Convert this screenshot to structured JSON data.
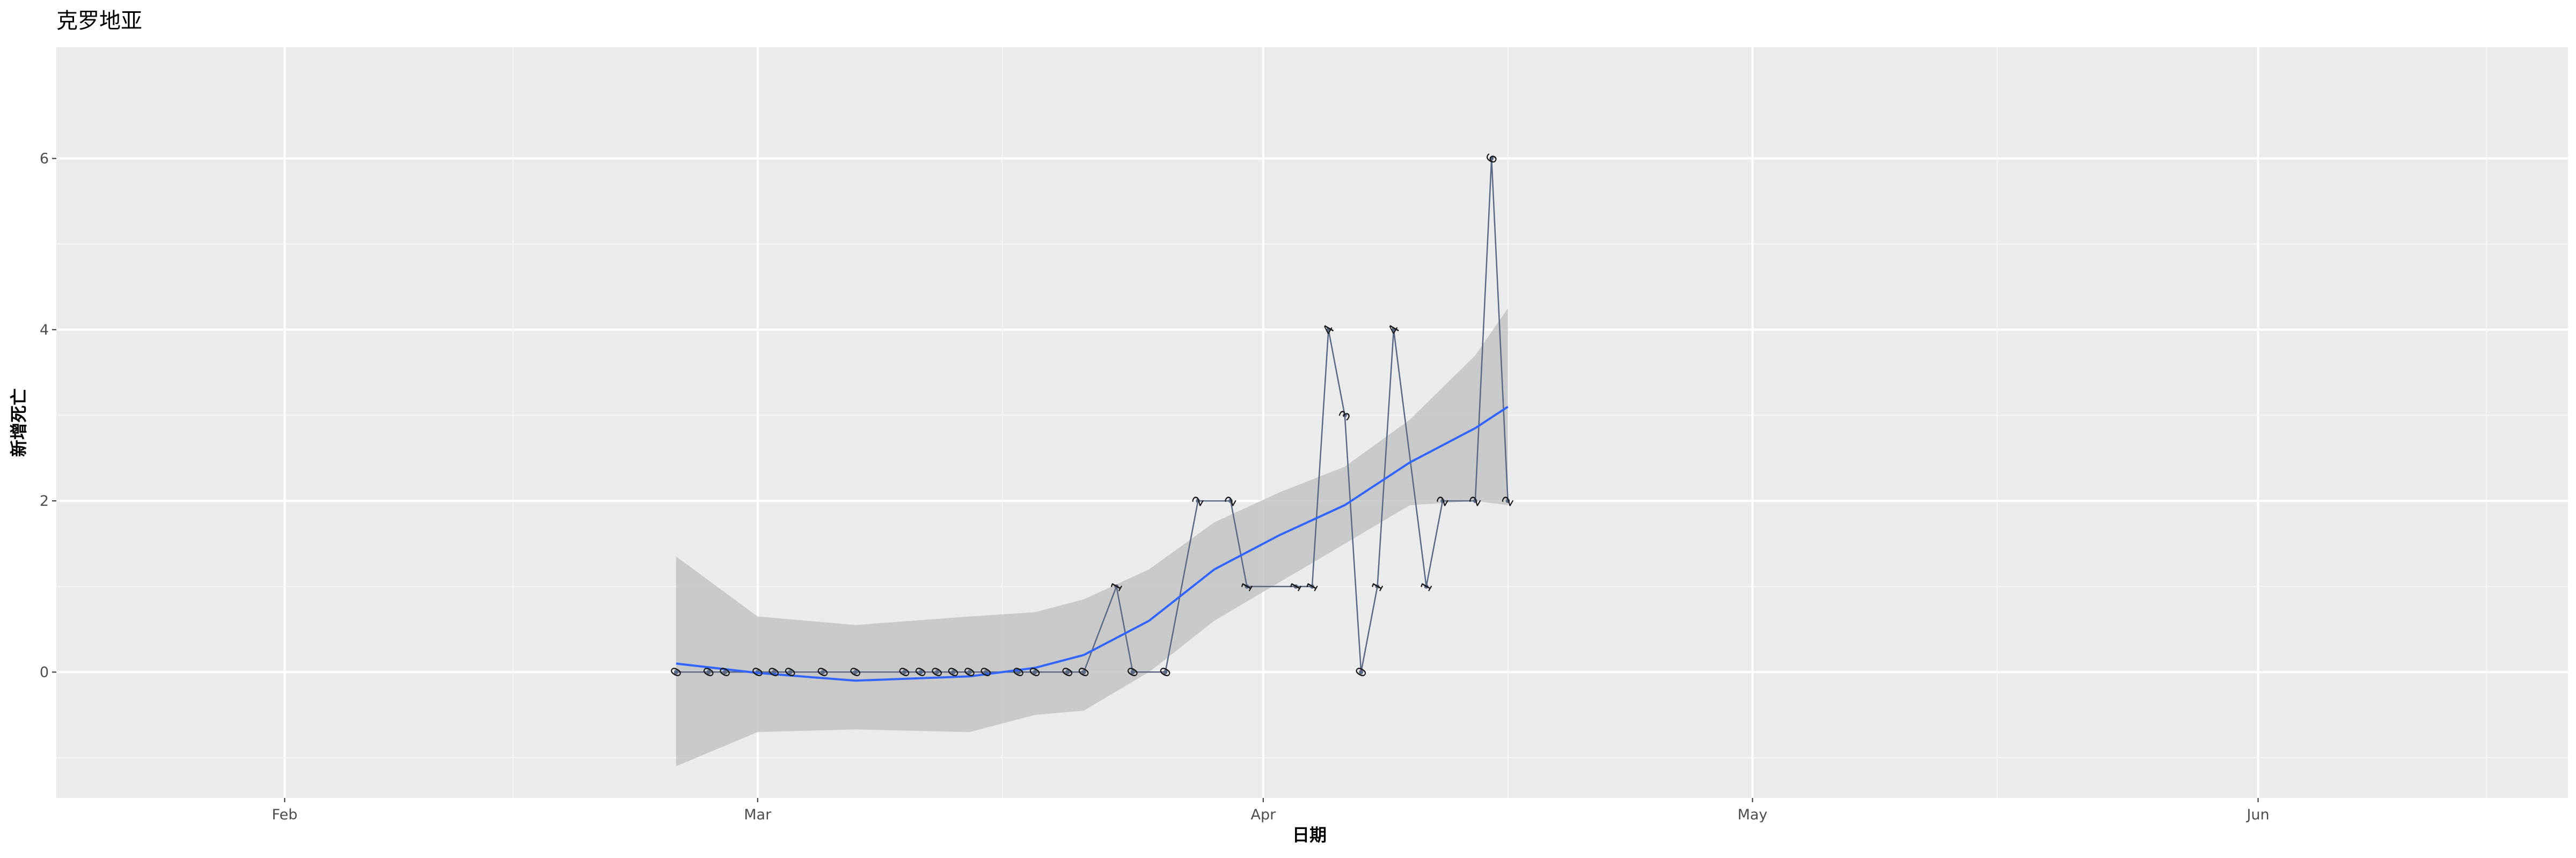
{
  "chart_data": {
    "type": "line",
    "title": "克罗地亚",
    "xlabel": "日期",
    "ylabel": "新增死亡",
    "x_ticks": [
      {
        "label": "Feb",
        "date": "2020-02-01"
      },
      {
        "label": "Mar",
        "date": "2020-03-01"
      },
      {
        "label": "Apr",
        "date": "2020-04-01"
      },
      {
        "label": "May",
        "date": "2020-05-01"
      },
      {
        "label": "Jun",
        "date": "2020-06-01"
      }
    ],
    "y_ticks": [
      0,
      2,
      4,
      6
    ],
    "xlim": [
      "2020-01-18",
      "2020-06-20"
    ],
    "ylim": [
      -1.47,
      7.3
    ],
    "grid": true,
    "series": [
      {
        "color": "#5a6785",
        "points": [
          {
            "x": "2020-02-25",
            "y": 0
          },
          {
            "x": "2020-02-27",
            "y": 0
          },
          {
            "x": "2020-02-28",
            "y": 0
          },
          {
            "x": "2020-03-01",
            "y": 0
          },
          {
            "x": "2020-03-02",
            "y": 0
          },
          {
            "x": "2020-03-03",
            "y": 0
          },
          {
            "x": "2020-03-05",
            "y": 0
          },
          {
            "x": "2020-03-07",
            "y": 0
          },
          {
            "x": "2020-03-10",
            "y": 0
          },
          {
            "x": "2020-03-11",
            "y": 0
          },
          {
            "x": "2020-03-12",
            "y": 0
          },
          {
            "x": "2020-03-13",
            "y": 0
          },
          {
            "x": "2020-03-14",
            "y": 0
          },
          {
            "x": "2020-03-15",
            "y": 0
          },
          {
            "x": "2020-03-17",
            "y": 0
          },
          {
            "x": "2020-03-18",
            "y": 0
          },
          {
            "x": "2020-03-20",
            "y": 0
          },
          {
            "x": "2020-03-21",
            "y": 0
          },
          {
            "x": "2020-03-23",
            "y": 1
          },
          {
            "x": "2020-03-24",
            "y": 0
          },
          {
            "x": "2020-03-26",
            "y": 0
          },
          {
            "x": "2020-03-28",
            "y": 2
          },
          {
            "x": "2020-03-30",
            "y": 2
          },
          {
            "x": "2020-03-31",
            "y": 1
          },
          {
            "x": "2020-04-03",
            "y": 1
          },
          {
            "x": "2020-04-04",
            "y": 1
          },
          {
            "x": "2020-04-05",
            "y": 4
          },
          {
            "x": "2020-04-06",
            "y": 3
          },
          {
            "x": "2020-04-07",
            "y": 0
          },
          {
            "x": "2020-04-08",
            "y": 1
          },
          {
            "x": "2020-04-09",
            "y": 4
          },
          {
            "x": "2020-04-11",
            "y": 1
          },
          {
            "x": "2020-04-12",
            "y": 2
          },
          {
            "x": "2020-04-14",
            "y": 2
          },
          {
            "x": "2020-04-15",
            "y": 6
          },
          {
            "x": "2020-04-16",
            "y": 2
          }
        ]
      }
    ],
    "smooth": {
      "color": "#3366ff",
      "band_color": "#bdbdbd",
      "points": [
        {
          "x": "2020-02-25",
          "y": 0.1,
          "lo": -1.1,
          "hi": 1.35
        },
        {
          "x": "2020-03-01",
          "y": -0.01,
          "lo": -0.7,
          "hi": 0.65
        },
        {
          "x": "2020-03-07",
          "y": -0.1,
          "lo": -0.67,
          "hi": 0.55
        },
        {
          "x": "2020-03-14",
          "y": -0.05,
          "lo": -0.7,
          "hi": 0.65
        },
        {
          "x": "2020-03-18",
          "y": 0.05,
          "lo": -0.5,
          "hi": 0.7
        },
        {
          "x": "2020-03-21",
          "y": 0.2,
          "lo": -0.45,
          "hi": 0.85
        },
        {
          "x": "2020-03-25",
          "y": 0.6,
          "lo": 0.0,
          "hi": 1.2
        },
        {
          "x": "2020-03-29",
          "y": 1.2,
          "lo": 0.6,
          "hi": 1.75
        },
        {
          "x": "2020-04-02",
          "y": 1.6,
          "lo": 1.05,
          "hi": 2.1
        },
        {
          "x": "2020-04-06",
          "y": 1.95,
          "lo": 1.5,
          "hi": 2.4
        },
        {
          "x": "2020-04-10",
          "y": 2.45,
          "lo": 1.95,
          "hi": 2.95
        },
        {
          "x": "2020-04-14",
          "y": 2.85,
          "lo": 2.0,
          "hi": 3.7
        },
        {
          "x": "2020-04-16",
          "y": 3.1,
          "lo": 1.95,
          "hi": 4.25
        }
      ]
    }
  }
}
